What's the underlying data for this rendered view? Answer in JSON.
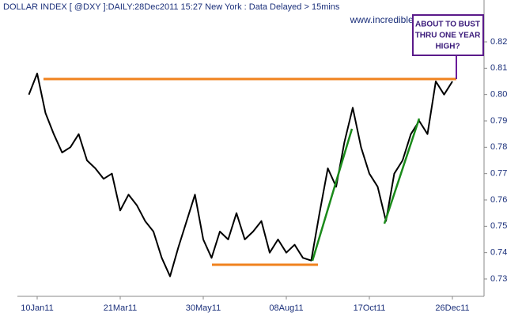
{
  "chart_data": {
    "type": "line",
    "title": "DOLLAR INDEX [ @DXY ]:DAILY:28Dec2011 15:27 New York  : Data Delayed > 15mins",
    "watermark": "www.incrediblecharts.com",
    "annotation": [
      "ABOUT TO BUST",
      "THRU ONE YEAR",
      "HIGH?"
    ],
    "categories": [
      null,
      "10Jan11",
      null,
      null,
      null,
      null,
      null,
      null,
      null,
      null,
      null,
      "21Mar11",
      null,
      null,
      null,
      null,
      null,
      null,
      null,
      null,
      null,
      "30May11",
      null,
      null,
      null,
      null,
      null,
      null,
      null,
      null,
      null,
      "08Aug11",
      null,
      null,
      null,
      null,
      null,
      null,
      null,
      null,
      null,
      "17Oct11",
      null,
      null,
      null,
      null,
      null,
      null,
      null,
      null,
      null,
      "26Dec11"
    ],
    "series": [
      {
        "name": "DXY",
        "color": "#000000",
        "values": [
          0.8,
          0.808,
          0.793,
          0.785,
          0.778,
          0.78,
          0.785,
          0.775,
          0.772,
          0.768,
          0.77,
          0.756,
          0.762,
          0.758,
          0.752,
          0.748,
          0.738,
          0.731,
          0.742,
          0.752,
          0.762,
          0.745,
          0.738,
          0.748,
          0.745,
          0.755,
          0.745,
          0.748,
          0.752,
          0.74,
          0.745,
          0.74,
          0.743,
          0.738,
          0.737,
          0.755,
          0.772,
          0.765,
          0.782,
          0.795,
          0.78,
          0.77,
          0.765,
          0.752,
          0.77,
          0.775,
          0.785,
          0.79,
          0.785,
          0.805,
          0.8,
          0.805
        ]
      }
    ],
    "ylim": [
      0.7234,
      0.8359
    ],
    "yticks": [
      0.73,
      0.74,
      0.75,
      0.76,
      0.77,
      0.78,
      0.79,
      {
        "value": 0.8,
        "label": "0.80"
      },
      0.81,
      0.82
    ],
    "grid": false
  }
}
